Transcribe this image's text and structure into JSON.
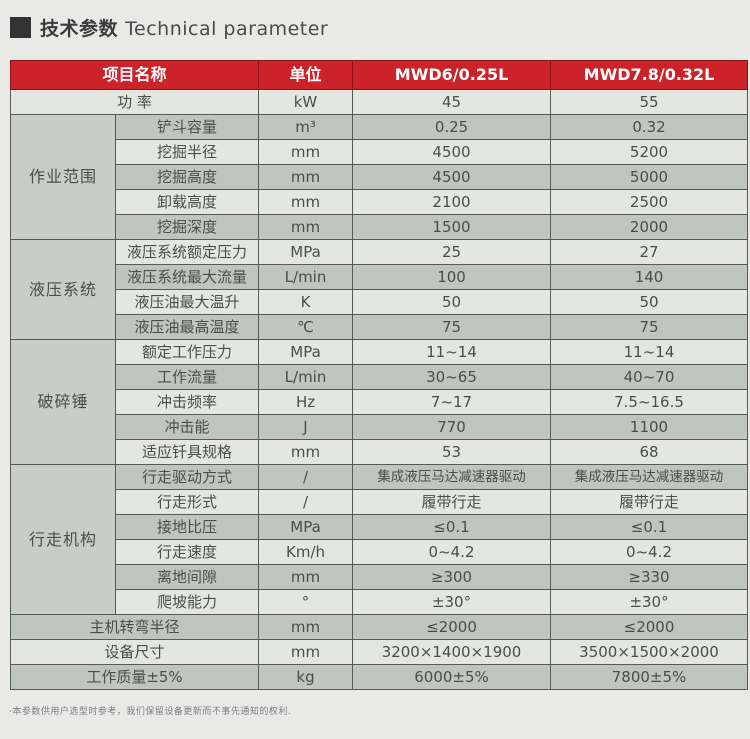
{
  "title": {
    "zh": "技术参数",
    "en": "Technical parameter",
    "bullet_icon": "black-square"
  },
  "colors": {
    "header_red": "#cb2329",
    "row_dark": "#bfc5c0",
    "row_light": "#e4e6e2",
    "group_cell_gray": "#c8cdc9",
    "page_bg": "#e9e9e7"
  },
  "table": {
    "columns": {
      "name": "项目名称",
      "unit": "单位",
      "model1": "MWD6/0.25L",
      "model2": "MWD7.8/0.32L"
    },
    "rows": [
      {
        "label": "功 率",
        "label_colspan": 2,
        "unit": "kW",
        "v1": "45",
        "v2": "55",
        "shade": "light"
      },
      {
        "group": "作业范围",
        "group_rowspan": 5,
        "label": "铲斗容量",
        "unit": "m³",
        "v1": "0.25",
        "v2": "0.32",
        "shade": "dark"
      },
      {
        "label": "挖掘半径",
        "unit": "mm",
        "v1": "4500",
        "v2": "5200",
        "shade": "light"
      },
      {
        "label": "挖掘高度",
        "unit": "mm",
        "v1": "4500",
        "v2": "5000",
        "shade": "dark"
      },
      {
        "label": "卸载高度",
        "unit": "mm",
        "v1": "2100",
        "v2": "2500",
        "shade": "light"
      },
      {
        "label": "挖掘深度",
        "unit": "mm",
        "v1": "1500",
        "v2": "2000",
        "shade": "dark"
      },
      {
        "group": "液压系统",
        "group_rowspan": 4,
        "label": "液压系统额定压力",
        "unit": "MPa",
        "v1": "25",
        "v2": "27",
        "shade": "light"
      },
      {
        "label": "液压系统最大流量",
        "unit": "L/min",
        "v1": "100",
        "v2": "140",
        "shade": "dark"
      },
      {
        "label": "液压油最大温升",
        "unit": "K",
        "v1": "50",
        "v2": "50",
        "shade": "light"
      },
      {
        "label": "液压油最高温度",
        "unit": "℃",
        "v1": "75",
        "v2": "75",
        "shade": "dark"
      },
      {
        "group": "破碎锤",
        "group_rowspan": 5,
        "label": "额定工作压力",
        "unit": "MPa",
        "v1": "11~14",
        "v2": "11~14",
        "shade": "light"
      },
      {
        "label": "工作流量",
        "unit": "L/min",
        "v1": "30~65",
        "v2": "40~70",
        "shade": "dark"
      },
      {
        "label": "冲击频率",
        "unit": "Hz",
        "v1": "7~17",
        "v2": "7.5~16.5",
        "shade": "light"
      },
      {
        "label": "冲击能",
        "unit": "J",
        "v1": "770",
        "v2": "1100",
        "shade": "dark"
      },
      {
        "label": "适应钎具规格",
        "unit": "mm",
        "v1": "53",
        "v2": "68",
        "shade": "light"
      },
      {
        "group": "行走机构",
        "group_rowspan": 6,
        "label": "行走驱动方式",
        "unit": "/",
        "v1": "集成液压马达减速器驱动",
        "v2": "集成液压马达减速器驱动",
        "shade": "dark",
        "long": true
      },
      {
        "label": "行走形式",
        "unit": "/",
        "v1": "履带行走",
        "v2": "履带行走",
        "shade": "light"
      },
      {
        "label": "接地比压",
        "unit": "MPa",
        "v1": "≤0.1",
        "v2": "≤0.1",
        "shade": "dark"
      },
      {
        "label": "行走速度",
        "unit": "Km/h",
        "v1": "0~4.2",
        "v2": "0~4.2",
        "shade": "light"
      },
      {
        "label": "离地间隙",
        "unit": "mm",
        "v1": "≥300",
        "v2": "≥330",
        "shade": "dark"
      },
      {
        "label": "爬坡能力",
        "unit": "°",
        "v1": "±30°",
        "v2": "±30°",
        "shade": "light"
      },
      {
        "label": "主机转弯半径",
        "label_colspan": 2,
        "unit": "mm",
        "v1": "≤2000",
        "v2": "≤2000",
        "shade": "dark"
      },
      {
        "label": "设备尺寸",
        "label_colspan": 2,
        "unit": "mm",
        "v1": "3200×1400×1900",
        "v2": "3500×1500×2000",
        "shade": "light"
      },
      {
        "label": "工作质量±5%",
        "label_colspan": 2,
        "unit": "kg",
        "v1": "6000±5%",
        "v2": "7800±5%",
        "shade": "dark"
      }
    ]
  },
  "footnote": "·本参数供用户选型时参考，我们保留设备更新而不事先通知的权利."
}
